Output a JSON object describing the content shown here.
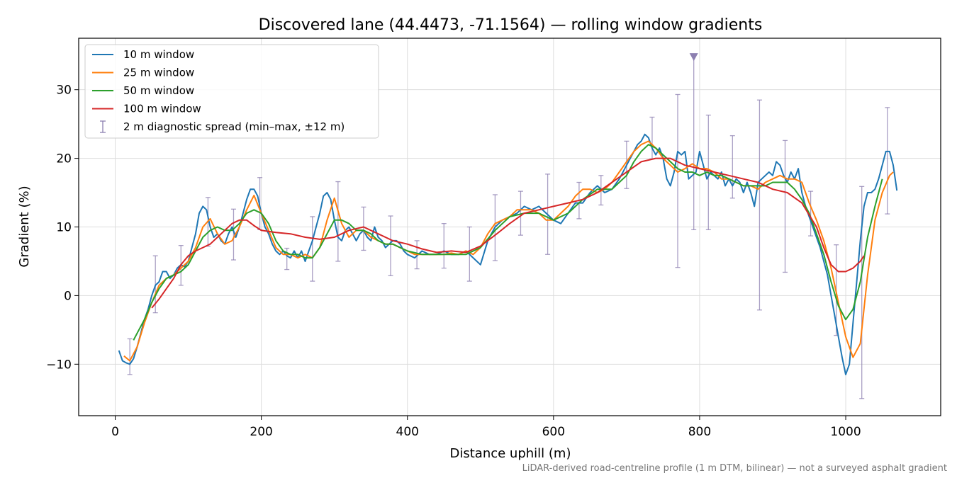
{
  "chart_data": {
    "type": "line",
    "title": "Discovered lane (44.4473, -71.1564) — rolling window gradients",
    "xlabel": "Distance uphill (m)",
    "ylabel": "Gradient (%)",
    "xlim": [
      -50,
      1130
    ],
    "ylim": [
      -17.5,
      37.5
    ],
    "xticks": [
      0,
      200,
      400,
      600,
      800,
      1000
    ],
    "yticks": [
      -10,
      0,
      10,
      20,
      30
    ],
    "xtick_labels": [
      "0",
      "200",
      "400",
      "600",
      "800",
      "1000"
    ],
    "ytick_labels": [
      "−10",
      "0",
      "10",
      "20",
      "30"
    ],
    "grid": true,
    "legend_position": "top-left",
    "footnote": "LiDAR-derived road-centreline profile (1 m DTM, bilinear) — not a surveyed asphalt gradient",
    "series": [
      {
        "name": "10 m window",
        "color": "#1f77b4",
        "x": [
          5,
          10,
          15,
          20,
          25,
          30,
          35,
          40,
          45,
          50,
          55,
          60,
          65,
          70,
          75,
          80,
          85,
          90,
          95,
          100,
          105,
          110,
          115,
          120,
          125,
          130,
          135,
          140,
          145,
          150,
          155,
          160,
          165,
          170,
          175,
          180,
          185,
          190,
          195,
          200,
          205,
          210,
          215,
          220,
          225,
          230,
          235,
          240,
          245,
          250,
          255,
          260,
          265,
          270,
          275,
          280,
          285,
          290,
          295,
          300,
          305,
          310,
          315,
          320,
          325,
          330,
          335,
          340,
          345,
          350,
          355,
          360,
          365,
          370,
          375,
          380,
          385,
          390,
          395,
          400,
          410,
          420,
          430,
          440,
          450,
          460,
          470,
          480,
          490,
          500,
          510,
          520,
          530,
          540,
          550,
          560,
          570,
          580,
          590,
          600,
          610,
          620,
          630,
          640,
          650,
          660,
          670,
          680,
          690,
          700,
          705,
          710,
          715,
          720,
          725,
          730,
          735,
          740,
          745,
          750,
          755,
          760,
          765,
          770,
          775,
          780,
          785,
          790,
          795,
          800,
          805,
          810,
          815,
          820,
          825,
          830,
          835,
          840,
          845,
          850,
          855,
          860,
          865,
          870,
          875,
          880,
          885,
          890,
          895,
          900,
          905,
          910,
          915,
          920,
          925,
          930,
          935,
          940,
          945,
          950,
          955,
          960,
          965,
          970,
          975,
          980,
          985,
          990,
          995,
          1000,
          1005,
          1010,
          1015,
          1020,
          1025,
          1030,
          1035,
          1040,
          1045,
          1050,
          1055,
          1060,
          1065,
          1070
        ],
        "values": [
          -8,
          -9.5,
          -9.8,
          -10,
          -9.2,
          -7.5,
          -5.5,
          -3.5,
          -2,
          0,
          1.5,
          2,
          3.5,
          3.5,
          2.5,
          3,
          4,
          4.5,
          4.2,
          5,
          7,
          9,
          12,
          13,
          12.5,
          10,
          8.5,
          9,
          8,
          7.5,
          9,
          10,
          8.5,
          10,
          12,
          14,
          15.5,
          15.5,
          14.5,
          12,
          10,
          9,
          7.5,
          6.5,
          6,
          6.5,
          5.8,
          5.5,
          6.5,
          5.5,
          6.5,
          5,
          6.5,
          8,
          10,
          12,
          14.5,
          15,
          14,
          11,
          8.5,
          8,
          9.5,
          10,
          9,
          8,
          9,
          9.5,
          8.5,
          8,
          10,
          8.5,
          8,
          7,
          7.5,
          8,
          8,
          7.5,
          6.5,
          6,
          5.5,
          6.5,
          6,
          6,
          6.5,
          6,
          6,
          6.5,
          5.5,
          4.5,
          8,
          10,
          11,
          11.5,
          12,
          13,
          12.5,
          13,
          12,
          11,
          10.5,
          12,
          13.5,
          13.5,
          15,
          16,
          15,
          15.5,
          17,
          19,
          20,
          21,
          22,
          22.5,
          23.5,
          23,
          21.5,
          20.5,
          21.5,
          20,
          17,
          16,
          18,
          21,
          20.5,
          21,
          17,
          17.5,
          18,
          21,
          19,
          17,
          18,
          17.5,
          17,
          18,
          16,
          17,
          16,
          17,
          16.5,
          15,
          16.5,
          15,
          13,
          16.5,
          17,
          17.5,
          18,
          17.5,
          19.5,
          19,
          17.5,
          16.5,
          18,
          17,
          18.5,
          15,
          13,
          11.5,
          10,
          8.5,
          7,
          5,
          3,
          0,
          -3,
          -6,
          -9,
          -11.5,
          -10,
          -4,
          2,
          8,
          13,
          15,
          15,
          15.5,
          17,
          19,
          21,
          21,
          19,
          15.3
        ]
      },
      {
        "name": "25 m window",
        "color": "#ff7f0e",
        "x": [
          12,
          20,
          30,
          40,
          50,
          60,
          70,
          80,
          90,
          100,
          110,
          120,
          130,
          140,
          150,
          160,
          170,
          180,
          190,
          200,
          210,
          220,
          230,
          240,
          250,
          260,
          270,
          280,
          290,
          300,
          310,
          320,
          330,
          340,
          350,
          360,
          370,
          380,
          390,
          400,
          410,
          420,
          430,
          440,
          450,
          460,
          470,
          480,
          490,
          500,
          510,
          520,
          530,
          540,
          550,
          560,
          570,
          580,
          590,
          600,
          610,
          620,
          630,
          640,
          650,
          660,
          670,
          680,
          690,
          700,
          710,
          720,
          730,
          740,
          750,
          760,
          770,
          780,
          790,
          800,
          810,
          820,
          830,
          840,
          850,
          860,
          870,
          880,
          890,
          900,
          910,
          920,
          930,
          940,
          950,
          960,
          970,
          980,
          990,
          1000,
          1010,
          1020,
          1030,
          1040,
          1050,
          1060,
          1065
        ],
        "values": [
          -8.8,
          -9.5,
          -7.5,
          -4,
          -1,
          1.5,
          2.5,
          3,
          4,
          5,
          7,
          10,
          11.2,
          9,
          7.5,
          8,
          10,
          12.5,
          14.6,
          12,
          9.5,
          7,
          6,
          6,
          5.5,
          6,
          5.5,
          7,
          11,
          14.2,
          10.5,
          8.5,
          9.5,
          9.5,
          8.5,
          8,
          7.5,
          7.5,
          7,
          6.5,
          6,
          6,
          6,
          6,
          6,
          6.2,
          6,
          6.5,
          6,
          7,
          9,
          10.5,
          11,
          11.5,
          12.5,
          12.5,
          12.5,
          12,
          11,
          11,
          12,
          13,
          14.5,
          15.5,
          15.5,
          15,
          15.5,
          16.5,
          18,
          19.5,
          21,
          22,
          22.5,
          21.5,
          20,
          19,
          18,
          18.5,
          19.2,
          18.5,
          18.5,
          18,
          17,
          17,
          16.5,
          16,
          16,
          15.5,
          16.5,
          17,
          17.5,
          17,
          17,
          16.5,
          13.5,
          11,
          8,
          4,
          -1,
          -6,
          -9,
          -7,
          3,
          11,
          15,
          17.5,
          18
        ]
      },
      {
        "name": "50 m window",
        "color": "#2ca02c",
        "x": [
          25,
          30,
          40,
          50,
          60,
          70,
          80,
          90,
          100,
          110,
          120,
          130,
          140,
          150,
          160,
          170,
          180,
          190,
          200,
          210,
          220,
          230,
          240,
          250,
          260,
          270,
          280,
          290,
          300,
          310,
          320,
          330,
          340,
          350,
          360,
          370,
          380,
          390,
          400,
          420,
          440,
          460,
          480,
          500,
          520,
          540,
          560,
          580,
          600,
          620,
          640,
          660,
          680,
          700,
          710,
          720,
          730,
          740,
          750,
          760,
          770,
          780,
          790,
          800,
          810,
          820,
          830,
          840,
          850,
          860,
          870,
          880,
          890,
          900,
          910,
          920,
          930,
          940,
          950,
          960,
          970,
          980,
          990,
          1000,
          1010,
          1020,
          1030,
          1040,
          1050
        ],
        "values": [
          -6.5,
          -5.5,
          -3.5,
          -1,
          1,
          2.5,
          3,
          3.5,
          4.5,
          6.5,
          8.5,
          9.5,
          10,
          9.5,
          9.5,
          10.5,
          12,
          12.5,
          12,
          10.5,
          8,
          6.5,
          6,
          6,
          5.5,
          5.5,
          7,
          9,
          11,
          11,
          10.5,
          9.5,
          9.5,
          9,
          8,
          7.5,
          7.5,
          7,
          6.5,
          6,
          6,
          6,
          6,
          7,
          9.5,
          11.5,
          12,
          12,
          11,
          12,
          14,
          15.5,
          15.5,
          17.5,
          19.5,
          21,
          22,
          21.5,
          20.5,
          19.5,
          18.5,
          18,
          18,
          17.5,
          18,
          17.5,
          17.5,
          17,
          16.5,
          16,
          16,
          16,
          16,
          16.5,
          16.5,
          16.5,
          15.5,
          14,
          12,
          9,
          6,
          2,
          -1.5,
          -3.5,
          -2,
          2,
          8.5,
          13,
          17
        ]
      },
      {
        "name": "100 m window",
        "color": "#d62728",
        "x": [
          50,
          60,
          70,
          80,
          90,
          100,
          110,
          120,
          130,
          140,
          150,
          160,
          170,
          180,
          190,
          200,
          220,
          240,
          260,
          280,
          300,
          320,
          340,
          360,
          380,
          400,
          420,
          440,
          460,
          480,
          500,
          520,
          540,
          560,
          580,
          600,
          620,
          640,
          660,
          680,
          700,
          720,
          740,
          760,
          780,
          800,
          820,
          840,
          860,
          880,
          900,
          920,
          940,
          960,
          970,
          980,
          990,
          1000,
          1010,
          1020,
          1025
        ],
        "values": [
          -1.8,
          -0.5,
          1,
          2.5,
          4.5,
          5.8,
          6.5,
          7,
          7.5,
          8.5,
          9.5,
          10.5,
          11,
          11,
          10.2,
          9.5,
          9.2,
          9,
          8.5,
          8.2,
          8.5,
          9.5,
          10,
          9,
          8,
          7.5,
          6.8,
          6.3,
          6.5,
          6.3,
          7.2,
          8.8,
          10.5,
          12,
          12.5,
          13,
          13.5,
          14,
          15,
          16.5,
          18,
          19.5,
          20,
          20,
          19,
          18.5,
          18,
          17.5,
          17,
          16.5,
          15.5,
          15,
          13.5,
          10,
          7,
          4.5,
          3.5,
          3.5,
          4,
          5,
          5.8
        ]
      }
    ],
    "diagnostic_spread": {
      "name": "2 m diagnostic spread (min–max, ±12 m)",
      "color": "#8c7fb0",
      "x": [
        20,
        55,
        90,
        127,
        162,
        198,
        235,
        270,
        305,
        340,
        377,
        413,
        450,
        485,
        520,
        555,
        592,
        635,
        665,
        700,
        735,
        770,
        792,
        812,
        845,
        882,
        917,
        952,
        987,
        1022,
        1057
      ],
      "min": [
        -11.5,
        -2.5,
        1.5,
        7.2,
        5.2,
        9.6,
        3.8,
        2.1,
        5.0,
        6.6,
        2.9,
        3.9,
        4.0,
        2.1,
        5.1,
        8.8,
        6.0,
        11.2,
        13.2,
        15.6,
        19.9,
        4.1,
        9.6,
        9.6,
        14.2,
        -2.1,
        3.4,
        8.7,
        -5.8,
        -15.0,
        11.9
      ],
      "max": [
        -6.3,
        5.8,
        7.3,
        14.3,
        12.6,
        17.2,
        6.9,
        11.5,
        16.6,
        12.9,
        11.6,
        8.0,
        10.5,
        10.0,
        14.7,
        15.2,
        17.7,
        16.5,
        17.5,
        22.5,
        26.0,
        29.3,
        35.0,
        26.3,
        23.3,
        28.5,
        22.6,
        15.2,
        7.4,
        15.9,
        27.4
      ]
    },
    "marker": {
      "x": 792,
      "y": 34.8,
      "shape": "triangle-down",
      "color": "#8c7fb0"
    }
  }
}
